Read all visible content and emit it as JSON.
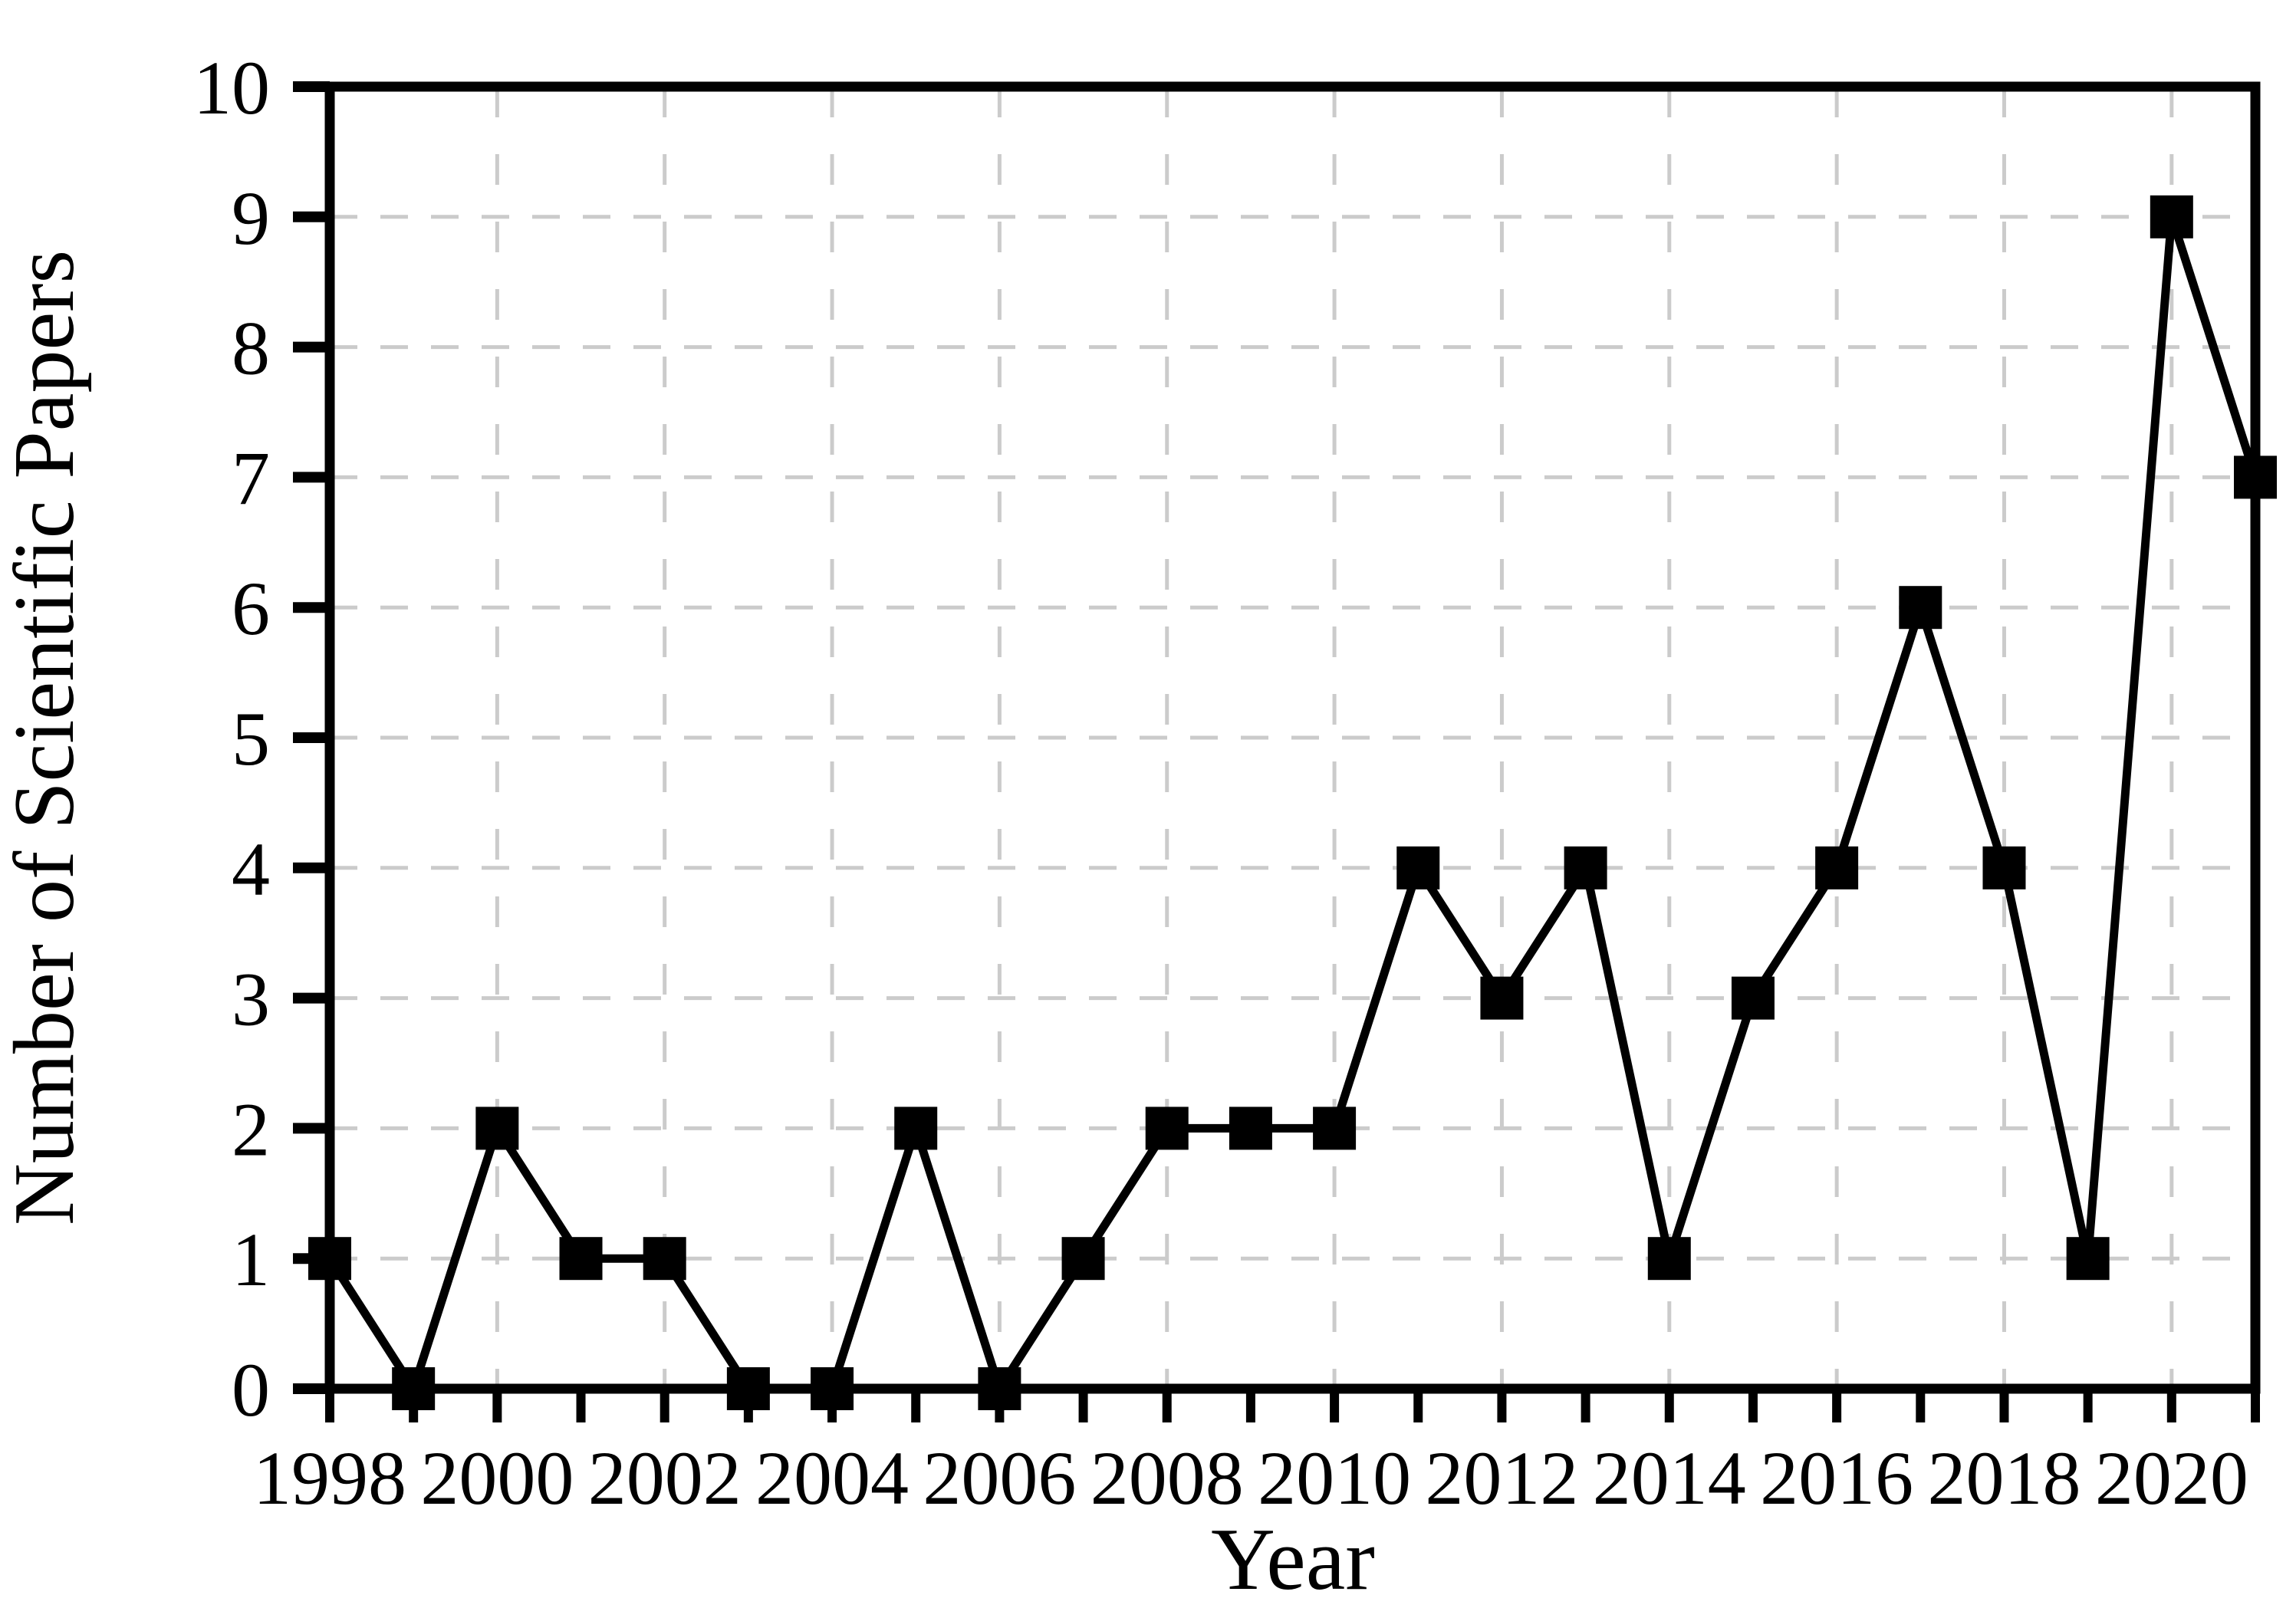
{
  "chart_data": {
    "type": "line",
    "title": "",
    "xlabel": "Year",
    "ylabel": "Number of Scientific Papers",
    "series": [
      {
        "name": "Number of Scientific Papers",
        "x": [
          1998,
          1999,
          2000,
          2001,
          2002,
          2003,
          2004,
          2005,
          2006,
          2007,
          2008,
          2009,
          2010,
          2011,
          2012,
          2013,
          2014,
          2015,
          2016,
          2017,
          2018,
          2019,
          2020,
          2021
        ],
        "values": [
          1,
          0,
          2,
          1,
          1,
          0,
          0,
          2,
          0,
          1,
          2,
          2,
          2,
          4,
          3,
          4,
          1,
          3,
          4,
          6,
          4,
          1,
          9,
          7
        ]
      }
    ],
    "xlim": [
      1998,
      2021
    ],
    "ylim": [
      0,
      10
    ],
    "y_ticks": [
      0,
      1,
      2,
      3,
      4,
      5,
      6,
      7,
      8,
      9,
      10
    ],
    "x_labeled_ticks": [
      1998,
      2000,
      2002,
      2004,
      2006,
      2008,
      2010,
      2012,
      2014,
      2016,
      2018,
      2020
    ],
    "x_minor_ticks_every_year": true,
    "grid": {
      "horizontal": "dashed at every integer 1-9",
      "vertical": "dashed at even years 2000-2020",
      "style": "dashed"
    },
    "legend_position": "none",
    "marker": "filled-square",
    "colors": {
      "line": "#000000",
      "marker": "#000000",
      "axis": "#000000",
      "grid": "#cbcbcb",
      "background": "#ffffff",
      "text": "#000000"
    }
  }
}
